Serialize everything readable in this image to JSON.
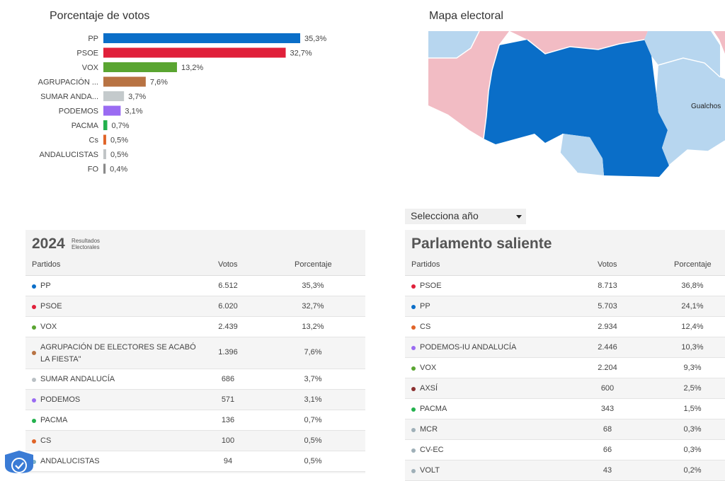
{
  "vote_section": {
    "title": "Porcentaje de votos"
  },
  "chart_data": {
    "type": "bar",
    "orientation": "horizontal",
    "categories": [
      "PP",
      "PSOE",
      "VOX",
      "AGRUPACIÓN ...",
      "SUMAR ANDA...",
      "PODEMOS",
      "PACMA",
      "Cs",
      "ANDALUCISTAS",
      "FO"
    ],
    "values": [
      35.3,
      32.7,
      13.2,
      7.6,
      3.7,
      3.1,
      0.7,
      0.5,
      0.5,
      0.4
    ],
    "value_labels": [
      "35,3%",
      "32,7%",
      "13,2%",
      "7,6%",
      "3,7%",
      "3,1%",
      "0,7%",
      "0,5%",
      "0,5%",
      "0,4%"
    ],
    "colors": [
      "#0a6ec8",
      "#e0203a",
      "#5aa531",
      "#b87343",
      "#c4cacc",
      "#9a6bf2",
      "#23b14d",
      "#e06428",
      "#c0c4c6",
      "#8a8a8a"
    ],
    "xlim": [
      0,
      35.3
    ],
    "grid": false,
    "legend": "none"
  },
  "map_section": {
    "title": "Mapa electoral",
    "place_label": "Gualchos",
    "colors": {
      "pp_dark": "#0a6ec8",
      "pp_light": "#b7d6ef",
      "psoe_light": "#f2bcc4"
    }
  },
  "year_select": {
    "label": "Selecciona año"
  },
  "results_2024": {
    "year": "2024",
    "subtitle_line1": "Resultados",
    "subtitle_line2": "Electorales",
    "headers": {
      "party": "Partidos",
      "votes": "Votos",
      "pct": "Porcentaje"
    },
    "rows": [
      {
        "party": "PP",
        "votes": "6.512",
        "pct": "35,3%",
        "color": "#0a6ec8"
      },
      {
        "party": "PSOE",
        "votes": "6.020",
        "pct": "32,7%",
        "color": "#e0203a"
      },
      {
        "party": "VOX",
        "votes": "2.439",
        "pct": "13,2%",
        "color": "#5aa531"
      },
      {
        "party": "AGRUPACIÓN DE ELECTORES SE ACABÓ LA FIESTA\"",
        "votes": "1.396",
        "pct": "7,6%",
        "color": "#b87343"
      },
      {
        "party": "SUMAR ANDALUCÍA",
        "votes": "686",
        "pct": "3,7%",
        "color": "#b9c0c4"
      },
      {
        "party": "PODEMOS",
        "votes": "571",
        "pct": "3,1%",
        "color": "#9a6bf2"
      },
      {
        "party": "PACMA",
        "votes": "136",
        "pct": "0,7%",
        "color": "#23b14d"
      },
      {
        "party": "CS",
        "votes": "100",
        "pct": "0,5%",
        "color": "#e06428"
      },
      {
        "party": "ANDALUCISTAS",
        "votes": "94",
        "pct": "0,5%",
        "color": "#7fb3c8"
      }
    ]
  },
  "parlamento": {
    "title": "Parlamento saliente",
    "headers": {
      "party": "Partidos",
      "votes": "Votos",
      "pct": "Porcentaje"
    },
    "rows": [
      {
        "party": "PSOE",
        "votes": "8.713",
        "pct": "36,8%",
        "color": "#e0203a"
      },
      {
        "party": "PP",
        "votes": "5.703",
        "pct": "24,1%",
        "color": "#0a6ec8"
      },
      {
        "party": "CS",
        "votes": "2.934",
        "pct": "12,4%",
        "color": "#e06428"
      },
      {
        "party": "PODEMOS-IU ANDALUCÍA",
        "votes": "2.446",
        "pct": "10,3%",
        "color": "#9a6bf2"
      },
      {
        "party": "VOX",
        "votes": "2.204",
        "pct": "9,3%",
        "color": "#5aa531"
      },
      {
        "party": "AXSÍ",
        "votes": "600",
        "pct": "2,5%",
        "color": "#8b2f2f"
      },
      {
        "party": "PACMA",
        "votes": "343",
        "pct": "1,5%",
        "color": "#23b14d"
      },
      {
        "party": "MCR",
        "votes": "68",
        "pct": "0,3%",
        "color": "#9fb0b8"
      },
      {
        "party": "CV-EC",
        "votes": "66",
        "pct": "0,3%",
        "color": "#9fb0b8"
      },
      {
        "party": "VOLT",
        "votes": "43",
        "pct": "0,2%",
        "color": "#9fb0b8"
      }
    ]
  }
}
